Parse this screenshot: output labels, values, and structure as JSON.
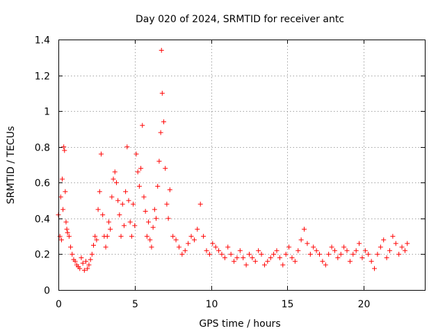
{
  "chart_data": {
    "type": "scatter",
    "title": "Day 020 of 2024, SRMTID for receiver antc",
    "xlabel": "GPS time / hours",
    "ylabel": "SRMTID / TECUs",
    "xlim": [
      0,
      24
    ],
    "ylim": [
      0,
      1.4
    ],
    "xticks": [
      0,
      5,
      10,
      15,
      20
    ],
    "xtick_labels": [
      "0",
      "5",
      "10",
      "15",
      "20"
    ],
    "yticks": [
      0,
      0.2,
      0.4,
      0.6,
      0.8,
      1,
      1.2,
      1.4
    ],
    "ytick_labels": [
      "0",
      "0.2",
      "0.4",
      "0.6",
      "0.8",
      "1",
      "1.2",
      "1.4"
    ],
    "grid": true,
    "marker": "+",
    "marker_color": "#ff0000",
    "series": [
      {
        "name": "SRMTID",
        "x": [
          0.0,
          0.1,
          0.15,
          0.2,
          0.25,
          0.3,
          0.35,
          0.4,
          0.45,
          0.5,
          0.55,
          0.6,
          0.7,
          0.8,
          0.9,
          1.0,
          1.1,
          1.2,
          1.3,
          1.4,
          1.5,
          1.6,
          1.7,
          1.8,
          1.9,
          2.0,
          2.1,
          2.2,
          2.3,
          2.4,
          2.5,
          2.6,
          2.7,
          2.8,
          2.9,
          3.0,
          3.1,
          3.2,
          3.3,
          3.4,
          3.5,
          3.6,
          3.7,
          3.8,
          3.9,
          4.0,
          4.1,
          4.2,
          4.3,
          4.4,
          4.5,
          4.6,
          4.7,
          4.8,
          4.9,
          5.0,
          5.1,
          5.2,
          5.3,
          5.4,
          5.5,
          5.6,
          5.7,
          5.8,
          5.9,
          6.0,
          6.1,
          6.2,
          6.3,
          6.4,
          6.5,
          6.6,
          6.7,
          6.75,
          6.8,
          6.9,
          7.0,
          7.1,
          7.2,
          7.3,
          7.5,
          7.7,
          7.9,
          8.1,
          8.3,
          8.5,
          8.7,
          8.9,
          9.1,
          9.3,
          9.5,
          9.7,
          9.9,
          10.1,
          10.3,
          10.5,
          10.7,
          10.9,
          11.1,
          11.3,
          11.5,
          11.7,
          11.9,
          12.1,
          12.3,
          12.5,
          12.7,
          12.9,
          13.1,
          13.3,
          13.5,
          13.7,
          13.9,
          14.1,
          14.3,
          14.5,
          14.7,
          14.9,
          15.1,
          15.3,
          15.5,
          15.7,
          15.9,
          16.1,
          16.3,
          16.5,
          16.7,
          16.9,
          17.1,
          17.3,
          17.5,
          17.7,
          17.9,
          18.1,
          18.3,
          18.5,
          18.7,
          18.9,
          19.1,
          19.3,
          19.5,
          19.7,
          19.9,
          20.1,
          20.3,
          20.5,
          20.7,
          20.9,
          21.1,
          21.3,
          21.5,
          21.7,
          21.9,
          22.1,
          22.3,
          22.5,
          22.7,
          22.85
        ],
        "y": [
          0.42,
          0.3,
          0.52,
          0.28,
          0.62,
          0.45,
          0.8,
          0.78,
          0.55,
          0.38,
          0.34,
          0.32,
          0.3,
          0.24,
          0.2,
          0.17,
          0.16,
          0.14,
          0.13,
          0.12,
          0.18,
          0.15,
          0.11,
          0.16,
          0.12,
          0.14,
          0.17,
          0.2,
          0.25,
          0.3,
          0.28,
          0.45,
          0.55,
          0.76,
          0.42,
          0.3,
          0.24,
          0.3,
          0.38,
          0.34,
          0.52,
          0.62,
          0.66,
          0.6,
          0.5,
          0.42,
          0.3,
          0.48,
          0.36,
          0.55,
          0.8,
          0.5,
          0.38,
          0.3,
          0.48,
          0.36,
          0.76,
          0.66,
          0.58,
          0.68,
          0.92,
          0.52,
          0.44,
          0.3,
          0.38,
          0.28,
          0.24,
          0.35,
          0.45,
          0.4,
          0.58,
          0.72,
          0.88,
          1.34,
          1.1,
          0.94,
          0.68,
          0.48,
          0.4,
          0.56,
          0.3,
          0.28,
          0.24,
          0.2,
          0.22,
          0.26,
          0.3,
          0.28,
          0.34,
          0.48,
          0.3,
          0.22,
          0.2,
          0.26,
          0.24,
          0.22,
          0.2,
          0.18,
          0.24,
          0.2,
          0.16,
          0.18,
          0.22,
          0.18,
          0.14,
          0.2,
          0.18,
          0.16,
          0.22,
          0.2,
          0.14,
          0.16,
          0.18,
          0.2,
          0.22,
          0.18,
          0.14,
          0.2,
          0.24,
          0.18,
          0.16,
          0.22,
          0.28,
          0.34,
          0.26,
          0.2,
          0.24,
          0.22,
          0.2,
          0.16,
          0.14,
          0.2,
          0.24,
          0.22,
          0.18,
          0.2,
          0.24,
          0.22,
          0.16,
          0.2,
          0.22,
          0.26,
          0.18,
          0.22,
          0.2,
          0.16,
          0.12,
          0.2,
          0.24,
          0.28,
          0.18,
          0.22,
          0.3,
          0.26,
          0.2,
          0.24,
          0.22,
          0.26
        ]
      }
    ]
  }
}
